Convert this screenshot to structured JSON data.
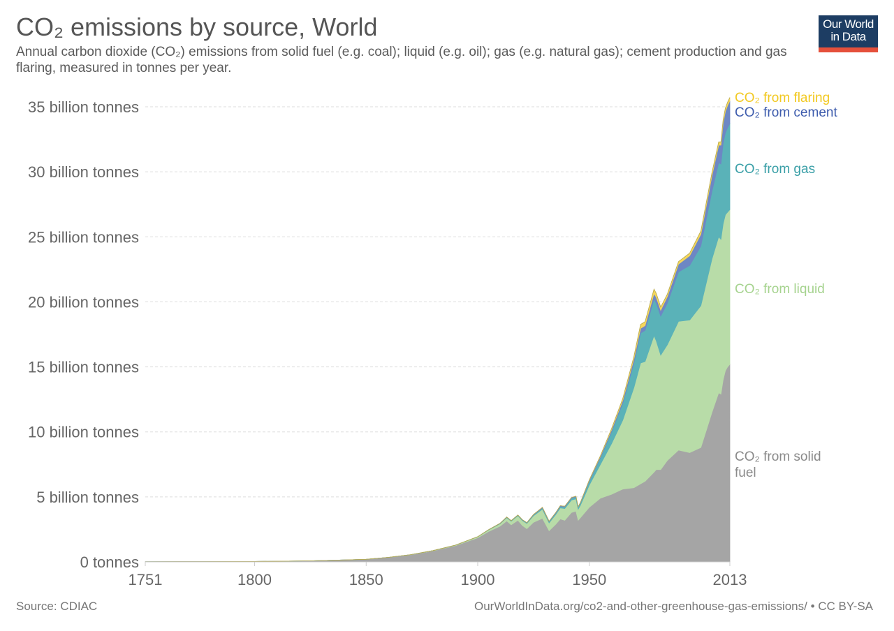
{
  "header": {
    "title": "CO₂ emissions by source, World",
    "subtitle": "Annual carbon dioxide (CO₂) emissions from solid fuel (e.g. coal); liquid (e.g. oil); gas (e.g. natural gas); cement production and gas flaring, measured in tonnes per year."
  },
  "logo": {
    "line1": "Our World",
    "line2": "in Data"
  },
  "footer": {
    "source": "Source: CDIAC",
    "url": "OurWorldInData.org/co2-and-other-greenhouse-gas-emissions/ • CC BY-SA"
  },
  "chart_data": {
    "type": "area",
    "stacked": true,
    "x_ticks": [
      1751,
      1800,
      1850,
      1900,
      1950,
      2013
    ],
    "y_ticks": [
      {
        "value": 0,
        "label": "0 tonnes"
      },
      {
        "value": 5,
        "label": "5 billion tonnes"
      },
      {
        "value": 10,
        "label": "10 billion tonnes"
      },
      {
        "value": 15,
        "label": "15 billion tonnes"
      },
      {
        "value": 20,
        "label": "20 billion tonnes"
      },
      {
        "value": 25,
        "label": "25 billion tonnes"
      },
      {
        "value": 30,
        "label": "30 billion tonnes"
      },
      {
        "value": 35,
        "label": "35 billion tonnes"
      }
    ],
    "xlim": [
      1751,
      2013
    ],
    "ylim": [
      0,
      35
    ],
    "grid": "horizontal dashed",
    "legend_placement": "right, inline labels",
    "x": [
      1751,
      1775,
      1800,
      1825,
      1850,
      1860,
      1870,
      1880,
      1890,
      1900,
      1905,
      1910,
      1913,
      1915,
      1918,
      1920,
      1922,
      1925,
      1929,
      1932,
      1935,
      1937,
      1939,
      1942,
      1944,
      1945,
      1946,
      1950,
      1955,
      1960,
      1965,
      1970,
      1973,
      1975,
      1979,
      1980,
      1982,
      1985,
      1990,
      1995,
      2000,
      2005,
      2008,
      2009,
      2010,
      2011,
      2012,
      2013
    ],
    "series": [
      {
        "name": "CO₂ from solid fuel",
        "color": "#a5a5a5",
        "values": [
          0.01,
          0.02,
          0.03,
          0.08,
          0.2,
          0.35,
          0.55,
          0.85,
          1.25,
          1.85,
          2.35,
          2.75,
          3.15,
          2.85,
          3.2,
          2.8,
          2.55,
          3.05,
          3.35,
          2.4,
          2.9,
          3.3,
          3.2,
          3.8,
          3.9,
          3.2,
          3.4,
          4.2,
          4.9,
          5.2,
          5.6,
          5.7,
          6.0,
          6.2,
          6.9,
          7.1,
          7.1,
          7.8,
          8.6,
          8.4,
          8.8,
          11.5,
          13.0,
          12.9,
          14.0,
          14.7,
          15.0,
          15.2
        ]
      },
      {
        "name": "CO₂ from liquid",
        "color": "#b8dca8",
        "values": [
          0,
          0,
          0,
          0,
          0,
          0,
          0.01,
          0.02,
          0.04,
          0.08,
          0.12,
          0.18,
          0.25,
          0.28,
          0.35,
          0.38,
          0.4,
          0.5,
          0.7,
          0.6,
          0.75,
          0.85,
          0.9,
          0.95,
          0.95,
          0.85,
          0.95,
          1.7,
          2.6,
          3.9,
          5.3,
          7.7,
          9.3,
          9.2,
          10.5,
          9.9,
          8.8,
          8.9,
          9.9,
          10.2,
          10.9,
          11.8,
          12.0,
          11.9,
          12.0,
          12.0,
          11.9,
          11.9
        ]
      },
      {
        "name": "CO₂ from gas",
        "color": "#5ab2b8",
        "values": [
          0,
          0,
          0,
          0,
          0,
          0,
          0,
          0,
          0,
          0.01,
          0.02,
          0.03,
          0.04,
          0.04,
          0.05,
          0.05,
          0.05,
          0.07,
          0.1,
          0.1,
          0.11,
          0.12,
          0.13,
          0.15,
          0.16,
          0.16,
          0.18,
          0.3,
          0.5,
          0.9,
          1.3,
          1.9,
          2.3,
          2.4,
          2.8,
          2.9,
          3.0,
          3.2,
          3.8,
          4.2,
          4.6,
          5.2,
          5.7,
          5.8,
          6.2,
          6.3,
          6.5,
          6.6
        ]
      },
      {
        "name": "CO₂ from cement",
        "color": "#6d87c4",
        "values": [
          0,
          0,
          0,
          0,
          0,
          0,
          0,
          0,
          0,
          0,
          0,
          0.01,
          0.01,
          0.01,
          0.01,
          0.01,
          0.02,
          0.03,
          0.04,
          0.03,
          0.04,
          0.05,
          0.05,
          0.05,
          0.04,
          0.03,
          0.04,
          0.08,
          0.12,
          0.16,
          0.22,
          0.3,
          0.36,
          0.37,
          0.43,
          0.45,
          0.45,
          0.5,
          0.6,
          0.75,
          0.9,
          1.2,
          1.35,
          1.45,
          1.55,
          1.65,
          1.7,
          1.75
        ]
      },
      {
        "name": "CO₂ from flaring",
        "color": "#f5d65a",
        "values": [
          0,
          0,
          0,
          0,
          0,
          0,
          0,
          0,
          0,
          0,
          0,
          0,
          0,
          0,
          0,
          0,
          0,
          0,
          0,
          0,
          0,
          0,
          0,
          0,
          0,
          0,
          0,
          0.02,
          0.05,
          0.1,
          0.15,
          0.2,
          0.3,
          0.3,
          0.35,
          0.3,
          0.25,
          0.2,
          0.2,
          0.2,
          0.25,
          0.25,
          0.25,
          0.25,
          0.25,
          0.26,
          0.26,
          0.27
        ]
      }
    ],
    "labels": [
      {
        "series": 4,
        "lines": [
          "CO₂ from flaring"
        ]
      },
      {
        "series": 3,
        "lines": [
          "CO₂ from cement"
        ]
      },
      {
        "series": 2,
        "lines": [
          "CO₂ from gas"
        ]
      },
      {
        "series": 1,
        "lines": [
          "CO₂ from liquid"
        ]
      },
      {
        "series": 0,
        "lines": [
          "CO₂ from solid",
          "fuel"
        ]
      }
    ],
    "label_colors": [
      "#8a8a8a",
      "#a6d38f",
      "#3a9fa7",
      "#3e5cad",
      "#f2c921"
    ]
  }
}
